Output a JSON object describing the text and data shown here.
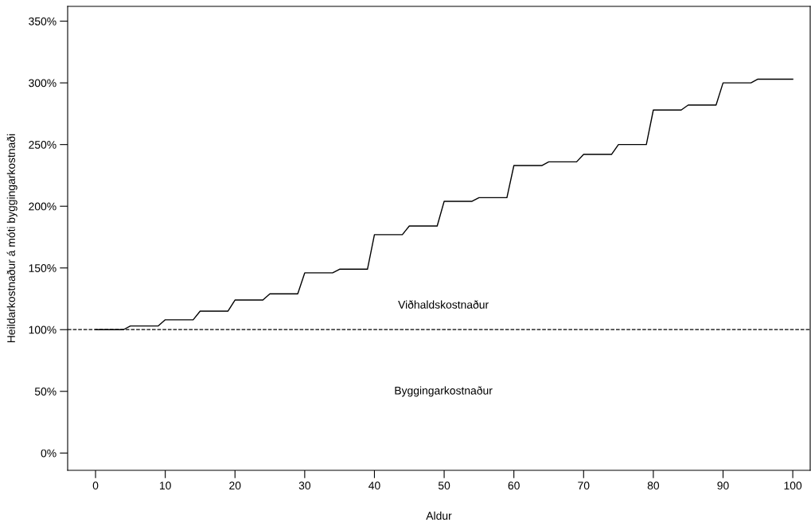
{
  "chart_data": {
    "type": "line",
    "xlabel": "Aldur",
    "ylabel": "Heildarkostnaður á móti byggingarkostnaði",
    "x": [
      0,
      4,
      5,
      9,
      10,
      14,
      15,
      19,
      20,
      24,
      25,
      29,
      30,
      34,
      35,
      39,
      40,
      44,
      45,
      49,
      50,
      54,
      55,
      59,
      60,
      64,
      65,
      69,
      70,
      74,
      75,
      79,
      80,
      84,
      85,
      89,
      90,
      94,
      95,
      100
    ],
    "series": [
      {
        "color": "#000000",
        "values": [
          100,
          100,
          103,
          103,
          108,
          108,
          115,
          115,
          124,
          124,
          129,
          129,
          146,
          146,
          149,
          149,
          177,
          177,
          184,
          184,
          204,
          204,
          207,
          207,
          233,
          233,
          236,
          236,
          242,
          242,
          250,
          250,
          278,
          278,
          282,
          282,
          300,
          300,
          303,
          303
        ]
      }
    ],
    "xlim": [
      -4,
      102.5
    ],
    "xticks": [
      0,
      10,
      20,
      30,
      40,
      50,
      60,
      70,
      80,
      90,
      100
    ],
    "ylim": [
      -14,
      362
    ],
    "yticks": [
      {
        "value": 0,
        "label": "0%"
      },
      {
        "value": 50,
        "label": "50%"
      },
      {
        "value": 100,
        "label": "100%"
      },
      {
        "value": 150,
        "label": "150%"
      },
      {
        "value": 200,
        "label": "200%"
      },
      {
        "value": 250,
        "label": "250%"
      },
      {
        "value": 300,
        "label": "300%"
      },
      {
        "value": 350,
        "label": "350%"
      }
    ],
    "ref_lines": [
      {
        "axis": "y",
        "value": 100,
        "color": "#000000",
        "line_style": "dashed"
      }
    ],
    "annotations": [
      "Viðhaldskostnaður",
      "Byggingarkostnaður"
    ],
    "grid": false,
    "legend": false,
    "marker": "none",
    "line_style": "solid"
  }
}
